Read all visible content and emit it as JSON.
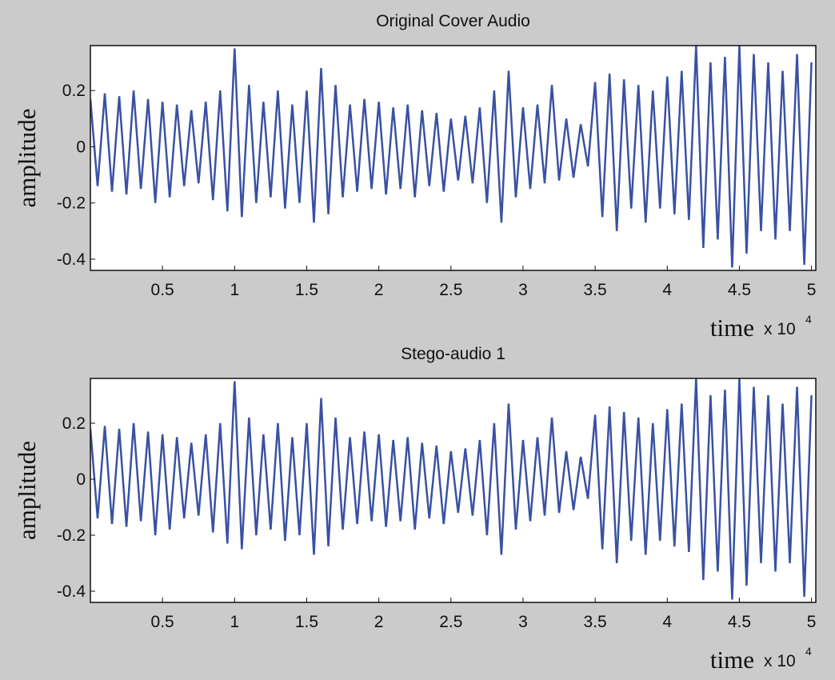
{
  "chart_data": [
    {
      "type": "line",
      "title": "Original Cover Audio",
      "xlabel": "time",
      "x_multiplier": "x 10",
      "x_exponent": "4",
      "ylabel": "amplitude",
      "color": "#3a51a3",
      "x": [
        0,
        500,
        1000,
        1500,
        2000,
        2500,
        3000,
        3500,
        4000,
        4500,
        5000,
        5500,
        6000,
        6500,
        7000,
        7500,
        8000,
        8500,
        9000,
        9500,
        10000,
        10500,
        11000,
        11500,
        12000,
        12500,
        13000,
        13500,
        14000,
        14500,
        15000,
        15500,
        16000,
        16500,
        17000,
        17500,
        18000,
        18500,
        19000,
        19500,
        20000,
        20500,
        21000,
        21500,
        22000,
        22500,
        23000,
        23500,
        24000,
        24500,
        25000,
        25500,
        26000,
        26500,
        27000,
        27500,
        28000,
        28500,
        29000,
        29500,
        30000,
        30500,
        31000,
        31500,
        32000,
        32500,
        33000,
        33500,
        34000,
        34500,
        35000,
        35500,
        36000,
        36500,
        37000,
        37500,
        38000,
        38500,
        39000,
        39500,
        40000,
        40500,
        41000,
        41500,
        42000,
        42500,
        43000,
        43500,
        44000,
        44500,
        45000,
        45500,
        46000,
        46500,
        47000,
        47500,
        48000,
        48500,
        49000,
        49500,
        50000
      ],
      "values": [
        0.17,
        -0.14,
        0.19,
        -0.16,
        0.18,
        -0.17,
        0.2,
        -0.15,
        0.17,
        -0.2,
        0.16,
        -0.18,
        0.15,
        -0.14,
        0.13,
        -0.13,
        0.16,
        -0.19,
        0.2,
        -0.23,
        0.35,
        -0.25,
        0.22,
        -0.2,
        0.16,
        -0.18,
        0.2,
        -0.22,
        0.15,
        -0.2,
        0.2,
        -0.27,
        0.28,
        -0.24,
        0.22,
        -0.18,
        0.15,
        -0.16,
        0.17,
        -0.15,
        0.16,
        -0.17,
        0.14,
        -0.15,
        0.15,
        -0.18,
        0.13,
        -0.14,
        0.12,
        -0.16,
        0.1,
        -0.12,
        0.11,
        -0.13,
        0.14,
        -0.2,
        0.2,
        -0.27,
        0.27,
        -0.18,
        0.14,
        -0.15,
        0.15,
        -0.13,
        0.22,
        -0.12,
        0.1,
        -0.11,
        0.08,
        -0.07,
        0.23,
        -0.25,
        0.26,
        -0.3,
        0.24,
        -0.22,
        0.22,
        -0.27,
        0.2,
        -0.22,
        0.25,
        -0.24,
        0.27,
        -0.26,
        0.36,
        -0.36,
        0.3,
        -0.33,
        0.32,
        -0.43,
        0.36,
        -0.38,
        0.33,
        -0.3,
        0.3,
        -0.33,
        0.27,
        -0.3,
        0.33,
        -0.42,
        0.3
      ],
      "xlim": [
        0,
        50300
      ],
      "ylim": [
        -0.44,
        0.36
      ],
      "xticks": [
        {
          "value": 5000,
          "label": "0.5"
        },
        {
          "value": 10000,
          "label": "1"
        },
        {
          "value": 15000,
          "label": "1.5"
        },
        {
          "value": 20000,
          "label": "2"
        },
        {
          "value": 25000,
          "label": "2.5"
        },
        {
          "value": 30000,
          "label": "3"
        },
        {
          "value": 35000,
          "label": "3.5"
        },
        {
          "value": 40000,
          "label": "4"
        },
        {
          "value": 45000,
          "label": "4.5"
        },
        {
          "value": 50000,
          "label": "5"
        }
      ],
      "yticks": [
        -0.4,
        -0.2,
        0,
        0.2
      ]
    },
    {
      "type": "line",
      "title": "Stego-audio 1",
      "xlabel": "time",
      "x_multiplier": "x 10",
      "x_exponent": "4",
      "ylabel": "amplitude",
      "color": "#3a51a3",
      "x": [
        0,
        500,
        1000,
        1500,
        2000,
        2500,
        3000,
        3500,
        4000,
        4500,
        5000,
        5500,
        6000,
        6500,
        7000,
        7500,
        8000,
        8500,
        9000,
        9500,
        10000,
        10500,
        11000,
        11500,
        12000,
        12500,
        13000,
        13500,
        14000,
        14500,
        15000,
        15500,
        16000,
        16500,
        17000,
        17500,
        18000,
        18500,
        19000,
        19500,
        20000,
        20500,
        21000,
        21500,
        22000,
        22500,
        23000,
        23500,
        24000,
        24500,
        25000,
        25500,
        26000,
        26500,
        27000,
        27500,
        28000,
        28500,
        29000,
        29500,
        30000,
        30500,
        31000,
        31500,
        32000,
        32500,
        33000,
        33500,
        34000,
        34500,
        35000,
        35500,
        36000,
        36500,
        37000,
        37500,
        38000,
        38500,
        39000,
        39500,
        40000,
        40500,
        41000,
        41500,
        42000,
        42500,
        43000,
        43500,
        44000,
        44500,
        45000,
        45500,
        46000,
        46500,
        47000,
        47500,
        48000,
        48500,
        49000,
        49500,
        50000
      ],
      "values": [
        0.18,
        -0.14,
        0.19,
        -0.16,
        0.18,
        -0.17,
        0.2,
        -0.15,
        0.17,
        -0.2,
        0.16,
        -0.18,
        0.15,
        -0.14,
        0.13,
        -0.13,
        0.16,
        -0.19,
        0.2,
        -0.23,
        0.35,
        -0.25,
        0.22,
        -0.2,
        0.16,
        -0.18,
        0.2,
        -0.22,
        0.15,
        -0.2,
        0.2,
        -0.27,
        0.29,
        -0.24,
        0.22,
        -0.18,
        0.15,
        -0.16,
        0.17,
        -0.15,
        0.16,
        -0.17,
        0.14,
        -0.15,
        0.15,
        -0.18,
        0.13,
        -0.14,
        0.12,
        -0.16,
        0.1,
        -0.12,
        0.11,
        -0.13,
        0.14,
        -0.2,
        0.2,
        -0.27,
        0.27,
        -0.18,
        0.14,
        -0.15,
        0.15,
        -0.13,
        0.22,
        -0.12,
        0.1,
        -0.11,
        0.08,
        -0.07,
        0.23,
        -0.25,
        0.26,
        -0.3,
        0.24,
        -0.22,
        0.22,
        -0.27,
        0.2,
        -0.22,
        0.25,
        -0.24,
        0.27,
        -0.26,
        0.36,
        -0.36,
        0.3,
        -0.33,
        0.32,
        -0.43,
        0.36,
        -0.38,
        0.33,
        -0.3,
        0.3,
        -0.33,
        0.27,
        -0.3,
        0.33,
        -0.42,
        0.3
      ],
      "xlim": [
        0,
        50300
      ],
      "ylim": [
        -0.44,
        0.36
      ],
      "xticks": [
        {
          "value": 5000,
          "label": "0.5"
        },
        {
          "value": 10000,
          "label": "1"
        },
        {
          "value": 15000,
          "label": "1.5"
        },
        {
          "value": 20000,
          "label": "2"
        },
        {
          "value": 25000,
          "label": "2.5"
        },
        {
          "value": 30000,
          "label": "3"
        },
        {
          "value": 35000,
          "label": "3.5"
        },
        {
          "value": 40000,
          "label": "4"
        },
        {
          "value": 45000,
          "label": "4.5"
        },
        {
          "value": 50000,
          "label": "5"
        }
      ],
      "yticks": [
        -0.4,
        -0.2,
        0,
        0.2
      ]
    }
  ]
}
